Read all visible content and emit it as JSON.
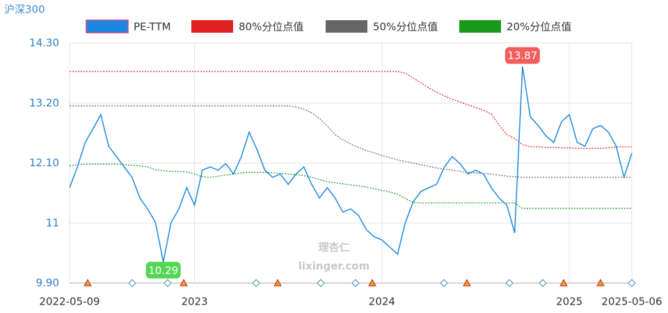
{
  "chart_data": {
    "type": "line",
    "title": "沪深300",
    "watermark": [
      "理杏仁",
      "lixinger.com"
    ],
    "categories": [
      "2022-05-09",
      null,
      null,
      null,
      null,
      null,
      null,
      null,
      null,
      null,
      null,
      null,
      null,
      null,
      null,
      null,
      "2023",
      null,
      null,
      null,
      null,
      null,
      null,
      null,
      null,
      null,
      null,
      null,
      null,
      null,
      null,
      null,
      null,
      null,
      null,
      null,
      null,
      null,
      null,
      null,
      "2024",
      null,
      null,
      null,
      null,
      null,
      null,
      null,
      null,
      null,
      null,
      null,
      null,
      null,
      null,
      null,
      null,
      null,
      null,
      null,
      null,
      null,
      null,
      null,
      "2025",
      null,
      null,
      null,
      null,
      null,
      null,
      null,
      "2025-05-06"
    ],
    "series": [
      {
        "name": "PE-TTM",
        "color": "#1a87e0",
        "values": [
          11.65,
          12.03,
          12.48,
          12.73,
          12.99,
          12.41,
          12.22,
          12.03,
          11.84,
          11.46,
          11.26,
          11.01,
          10.29,
          11.01,
          11.26,
          11.65,
          11.33,
          11.97,
          12.03,
          11.97,
          12.09,
          11.9,
          12.22,
          12.67,
          12.35,
          11.97,
          11.84,
          11.9,
          11.71,
          11.9,
          12.03,
          11.71,
          11.46,
          11.65,
          11.46,
          11.2,
          11.26,
          11.14,
          10.88,
          10.75,
          10.69,
          10.56,
          10.43,
          11.01,
          11.39,
          11.58,
          11.65,
          11.71,
          12.03,
          12.22,
          12.09,
          11.9,
          11.97,
          11.9,
          11.65,
          11.46,
          11.33,
          10.82,
          13.87,
          12.95,
          12.79,
          12.6,
          12.48,
          12.86,
          12.99,
          12.48,
          12.41,
          12.73,
          12.79,
          12.67,
          12.41,
          11.84,
          12.28
        ]
      },
      {
        "name": "80%分位点值",
        "color": "#e02020",
        "values": [
          13.78,
          13.78,
          13.78,
          13.78,
          13.78,
          13.78,
          13.78,
          13.78,
          13.78,
          13.78,
          13.78,
          13.78,
          13.78,
          13.78,
          13.78,
          13.78,
          13.78,
          13.78,
          13.78,
          13.78,
          13.78,
          13.78,
          13.78,
          13.78,
          13.78,
          13.78,
          13.78,
          13.78,
          13.78,
          13.78,
          13.78,
          13.78,
          13.78,
          13.78,
          13.78,
          13.78,
          13.78,
          13.78,
          13.78,
          13.78,
          13.78,
          13.78,
          13.78,
          13.75,
          13.66,
          13.57,
          13.48,
          13.4,
          13.33,
          13.27,
          13.22,
          13.17,
          13.12,
          13.07,
          13.0,
          12.8,
          12.62,
          12.55,
          12.44,
          12.4,
          12.4,
          12.39,
          12.39,
          12.38,
          12.38,
          12.37,
          12.37,
          12.37,
          12.37,
          12.38,
          12.4,
          12.4,
          12.4
        ]
      },
      {
        "name": "50%分位点值",
        "color": "#666666",
        "values": [
          13.15,
          13.15,
          13.15,
          13.15,
          13.15,
          13.15,
          13.15,
          13.15,
          13.15,
          13.15,
          13.15,
          13.15,
          13.15,
          13.15,
          13.15,
          13.15,
          13.15,
          13.15,
          13.15,
          13.15,
          13.15,
          13.15,
          13.15,
          13.15,
          13.15,
          13.15,
          13.15,
          13.15,
          13.15,
          13.13,
          13.09,
          13.02,
          12.92,
          12.78,
          12.62,
          12.53,
          12.45,
          12.39,
          12.33,
          12.29,
          12.24,
          12.2,
          12.16,
          12.13,
          12.1,
          12.07,
          12.04,
          12.01,
          11.99,
          11.97,
          11.95,
          11.93,
          11.92,
          11.91,
          11.9,
          11.88,
          11.86,
          11.85,
          11.84,
          11.84,
          11.84,
          11.84,
          11.84,
          11.84,
          11.84,
          11.84,
          11.84,
          11.84,
          11.84,
          11.84,
          11.84,
          11.84,
          11.84
        ]
      },
      {
        "name": "20%分位点值",
        "color": "#1a9a1a",
        "values": [
          12.05,
          12.07,
          12.08,
          12.08,
          12.08,
          12.08,
          12.08,
          12.07,
          12.06,
          12.05,
          12.03,
          11.98,
          11.96,
          11.95,
          11.95,
          11.94,
          11.9,
          11.85,
          11.84,
          11.86,
          11.88,
          11.9,
          11.92,
          11.93,
          11.93,
          11.93,
          11.92,
          11.91,
          11.9,
          11.89,
          11.87,
          11.84,
          11.8,
          11.76,
          11.74,
          11.72,
          11.7,
          11.68,
          11.66,
          11.63,
          11.6,
          11.57,
          11.53,
          11.45,
          11.38,
          11.37,
          11.37,
          11.37,
          11.37,
          11.37,
          11.37,
          11.37,
          11.37,
          11.37,
          11.37,
          11.37,
          11.37,
          11.37,
          11.27,
          11.27,
          11.27,
          11.27,
          11.27,
          11.27,
          11.27,
          11.27,
          11.27,
          11.27,
          11.27,
          11.27,
          11.27,
          11.27,
          11.27
        ]
      }
    ],
    "annotations": [
      13.87,
      10.29
    ],
    "ylim": [
      9.9,
      14.3
    ],
    "yticks": [
      {
        "value": 9.9,
        "label": "9.90"
      },
      11,
      {
        "value": 12.1,
        "label": "12.10"
      },
      {
        "value": 13.2,
        "label": "13.20"
      },
      {
        "value": 14.3,
        "label": "14.30"
      }
    ],
    "grid": true
  }
}
